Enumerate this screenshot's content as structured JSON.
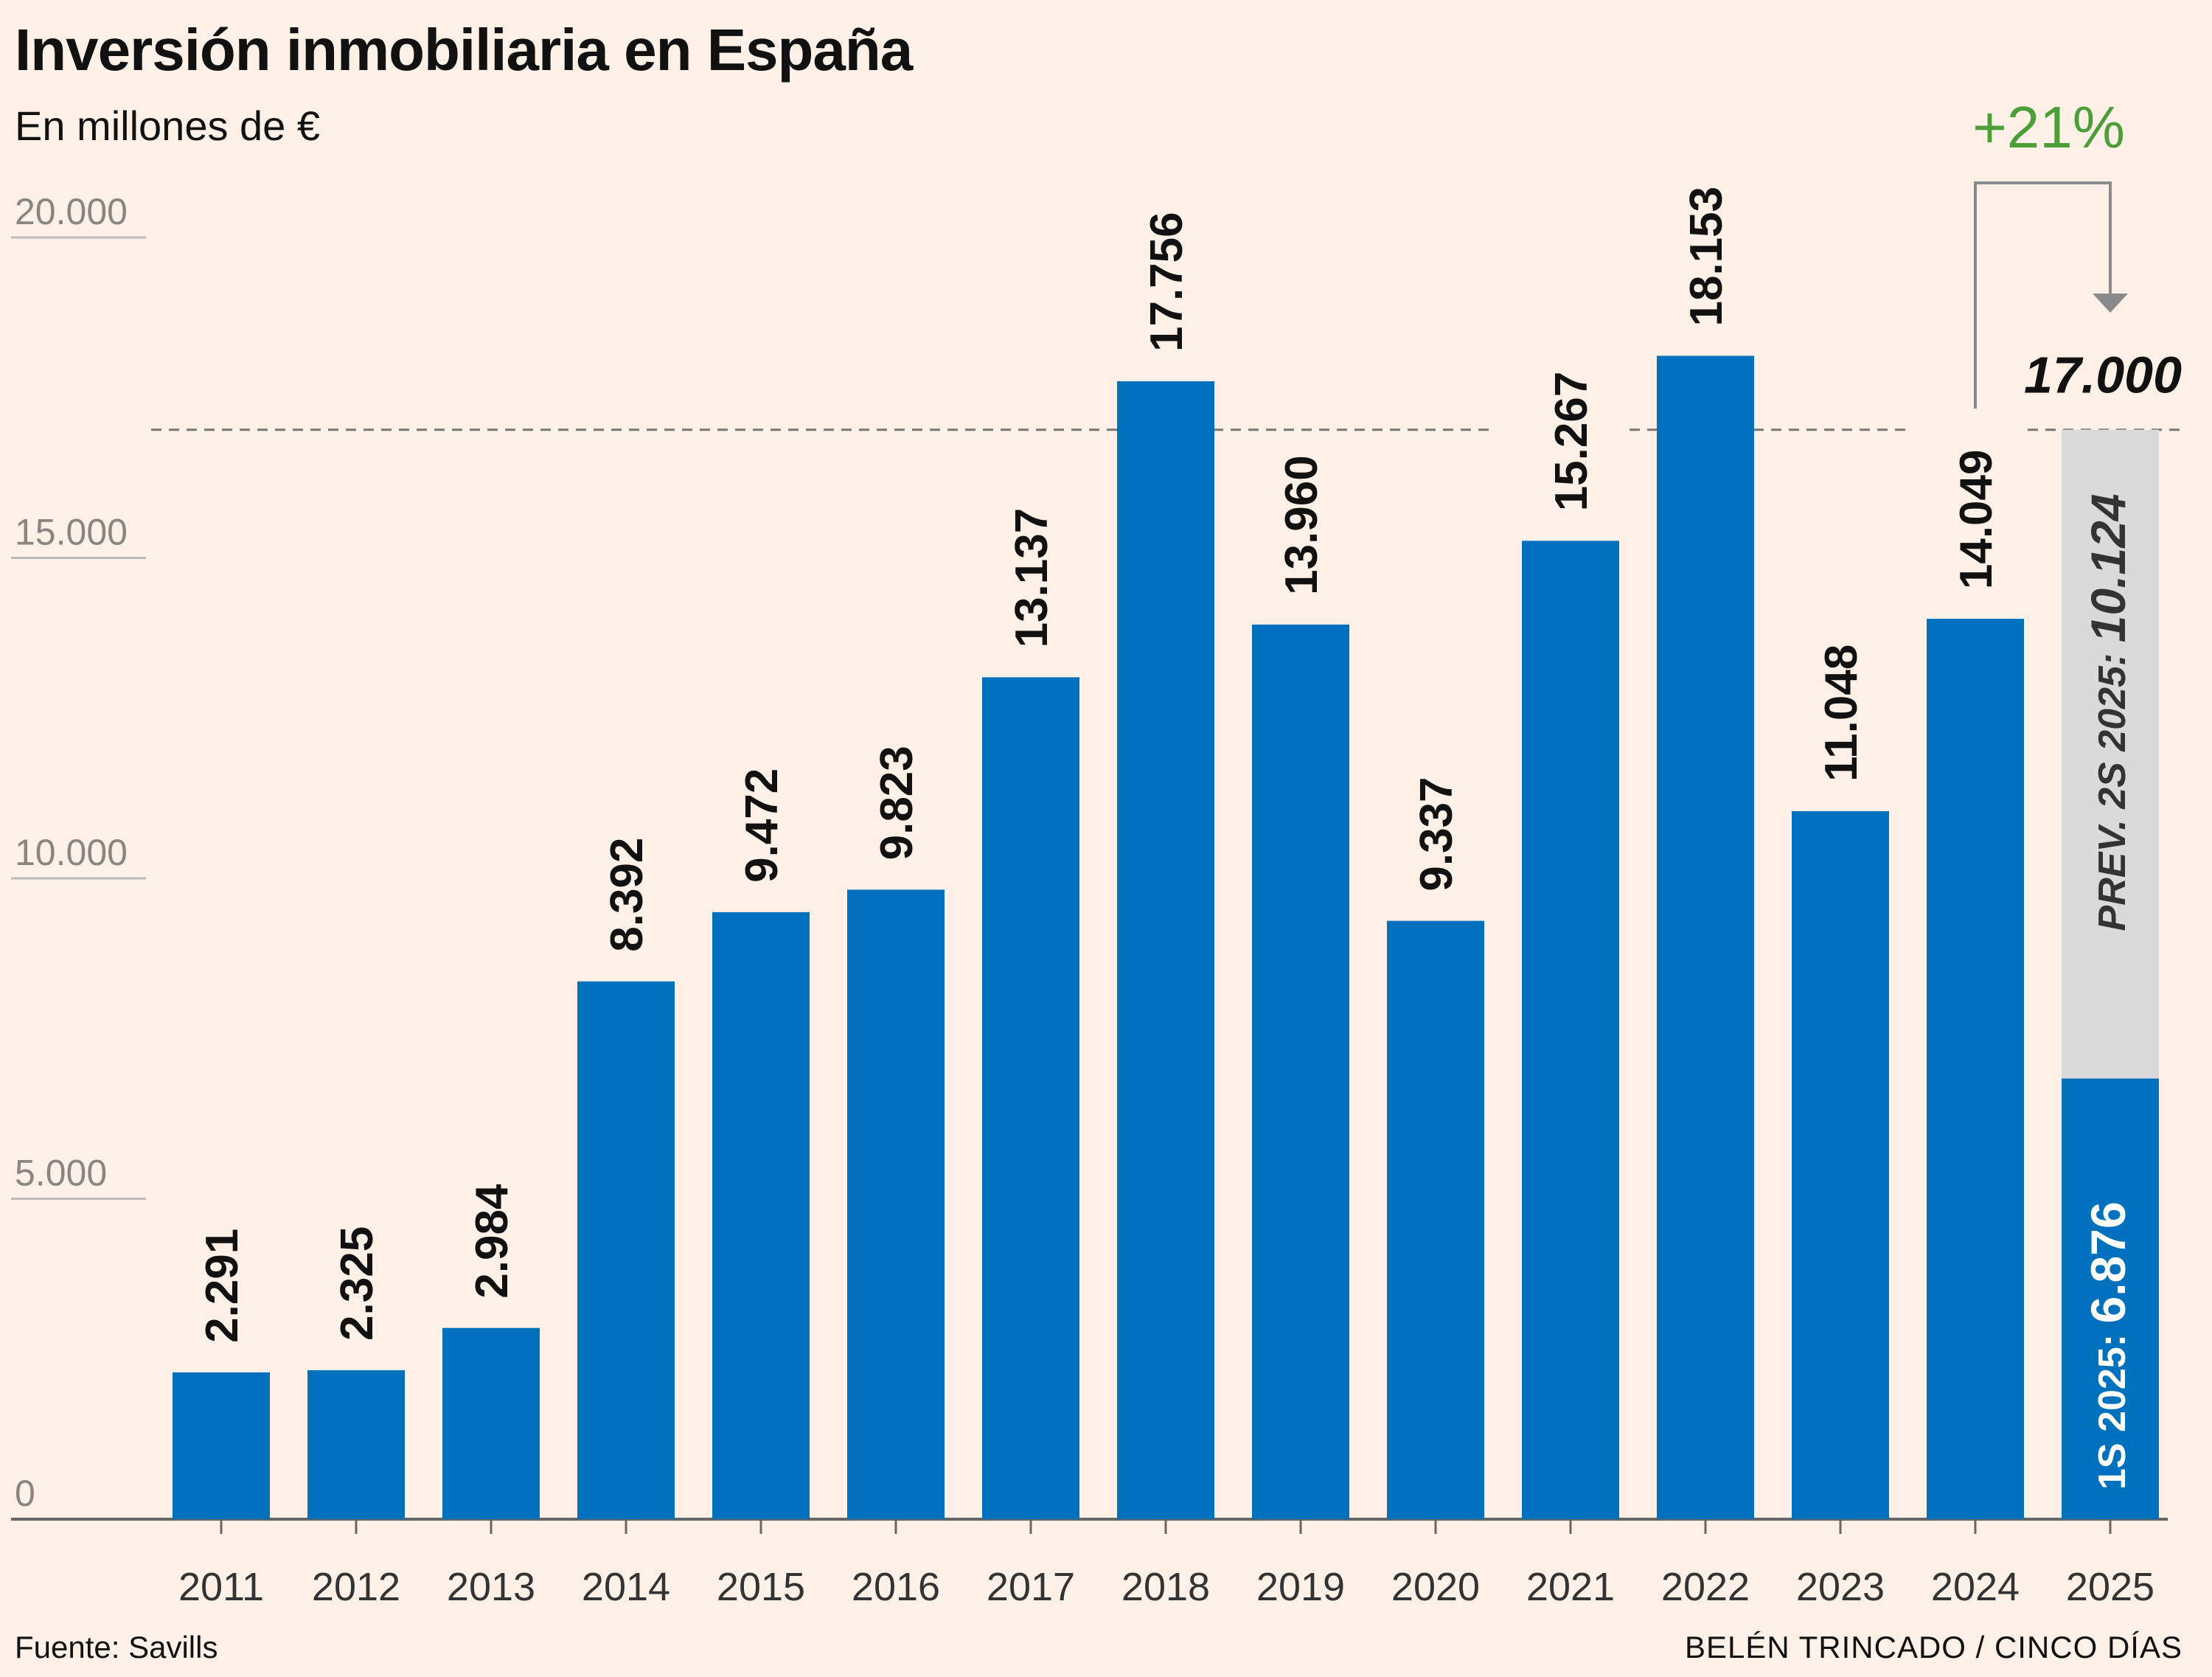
{
  "title": "Inversión inmobiliaria en España",
  "subtitle": "En millones de €",
  "source": "Fuente: Savills",
  "credit": "BELÉN TRINCADO / CINCO DÍAS",
  "colors": {
    "bar": "#0071bc",
    "forecast": "#dadada",
    "accent": "#4c9f38",
    "axis": "#666666",
    "grid": "#bbbbbb"
  },
  "chart_data": {
    "type": "bar",
    "title": "Inversión inmobiliaria en España",
    "ylabel": "En millones de €",
    "ylim": [
      0,
      20000
    ],
    "yticks": [
      0,
      5000,
      10000,
      15000,
      20000
    ],
    "ytick_labels": [
      "0",
      "5.000",
      "10.000",
      "15.000",
      "20.000"
    ],
    "categories": [
      "2011",
      "2012",
      "2013",
      "2014",
      "2015",
      "2016",
      "2017",
      "2018",
      "2019",
      "2020",
      "2021",
      "2022",
      "2023",
      "2024"
    ],
    "values": [
      2291,
      2325,
      2984,
      8392,
      9472,
      9823,
      13137,
      17756,
      13960,
      9337,
      15267,
      18153,
      11048,
      14049
    ],
    "value_labels": [
      "2.291",
      "2.325",
      "2.984",
      "8.392",
      "9.472",
      "9.823",
      "13.137",
      "17.756",
      "13.960",
      "9.337",
      "15.267",
      "18.153",
      "11.048",
      "14.049"
    ],
    "stacked_year": {
      "category": "2025",
      "segments": [
        {
          "name": "1S 2025:",
          "value": 6876,
          "value_label": "6.876",
          "type": "actual"
        },
        {
          "name": "PREV. 2S 2025:",
          "value": 10124,
          "value_label": "10.124",
          "type": "forecast"
        }
      ],
      "total": 17000,
      "total_label": "17.000"
    },
    "reference_line": {
      "value": 17000,
      "style": "dashed"
    },
    "annotation": {
      "text": "+21%",
      "from": "2024",
      "to": "2025"
    }
  }
}
